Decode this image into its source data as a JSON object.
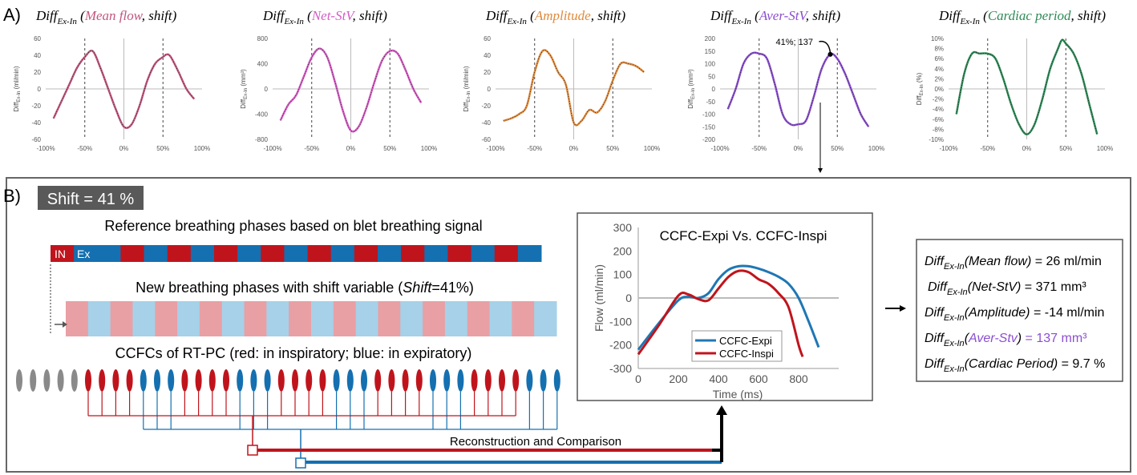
{
  "panel_a": {
    "label": "A)",
    "charts": [
      {
        "prefix": "Diff",
        "sub": "Ex-In",
        "param": "Mean flow",
        "suffix": ", shift)",
        "color": "#c2577f",
        "ylabel_pre": "Diff",
        "ylabel_sub": "Ex-In",
        "ylabel_post": " (ml/min)",
        "yticks": [
          "60",
          "40",
          "20",
          "0",
          "-20",
          "-40",
          "-60"
        ],
        "xticks": [
          "-100%",
          "-50%",
          "0%",
          "50%",
          "100%"
        ],
        "ylim": [
          -60,
          60
        ],
        "x": [
          -90,
          -80,
          -70,
          -60,
          -50,
          -40,
          -30,
          -20,
          -10,
          0,
          10,
          20,
          30,
          40,
          50,
          55,
          60,
          70,
          80,
          90
        ],
        "y": [
          -35,
          -15,
          5,
          25,
          38,
          45,
          25,
          0,
          -25,
          -45,
          -42,
          -20,
          10,
          30,
          38,
          41,
          38,
          20,
          0,
          -12
        ]
      },
      {
        "prefix": "Diff",
        "sub": "Ex-In",
        "param": "Net-StV",
        "suffix": ", shift)",
        "color": "#d55cc4",
        "ylabel_pre": "Diff",
        "ylabel_sub": "Ex-In",
        "ylabel_post": " (mm³)",
        "yticks": [
          "800",
          "400",
          "0",
          "-400",
          "-800"
        ],
        "xticks": [
          "-100%",
          "-50%",
          "0%",
          "50%",
          "100%"
        ],
        "ylim": [
          -800,
          800
        ],
        "x": [
          -90,
          -80,
          -70,
          -60,
          -50,
          -40,
          -30,
          -20,
          -10,
          0,
          10,
          20,
          30,
          40,
          50,
          60,
          70,
          80,
          90
        ],
        "y": [
          -500,
          -250,
          -100,
          200,
          500,
          640,
          500,
          100,
          -350,
          -660,
          -600,
          -300,
          100,
          450,
          600,
          560,
          300,
          0,
          -220
        ]
      },
      {
        "prefix": "Diff",
        "sub": "Ex-In",
        "param": "Amplitude",
        "suffix": ", shift)",
        "color": "#e08a3c",
        "ylabel_pre": "Diff",
        "ylabel_sub": "Ex-In",
        "ylabel_post": " (ml/min)",
        "yticks": [
          "60",
          "40",
          "20",
          "0",
          "-20",
          "-40",
          "-60"
        ],
        "xticks": [
          "-100%",
          "-50%",
          "0%",
          "50%",
          "100%"
        ],
        "ylim": [
          -60,
          60
        ],
        "x": [
          -90,
          -80,
          -70,
          -60,
          -50,
          -40,
          -30,
          -20,
          -10,
          0,
          10,
          20,
          30,
          40,
          50,
          60,
          70,
          80,
          90
        ],
        "y": [
          -38,
          -35,
          -30,
          -20,
          20,
          45,
          40,
          20,
          5,
          -40,
          -38,
          -25,
          -28,
          -15,
          10,
          30,
          30,
          27,
          20
        ]
      },
      {
        "prefix": "Diff",
        "sub": "Ex-In",
        "param": "Aver-StV",
        "suffix": ", shift)",
        "color": "#8b4fcf",
        "ylabel_pre": "Diff",
        "ylabel_sub": "Ex-In",
        "ylabel_post": " (mm³)",
        "yticks": [
          "200",
          "150",
          "100",
          "50",
          "0",
          "-50",
          "-100",
          "-150",
          "-200"
        ],
        "xticks": [
          "-100%",
          "-50%",
          "0%",
          "50%",
          "100%"
        ],
        "ylim": [
          -200,
          200
        ],
        "annotation": "41%; 137",
        "x": [
          -90,
          -80,
          -70,
          -60,
          -50,
          -40,
          -30,
          -20,
          -10,
          0,
          10,
          20,
          30,
          41,
          50,
          60,
          70,
          80,
          90
        ],
        "y": [
          -80,
          0,
          100,
          140,
          140,
          120,
          20,
          -100,
          -140,
          -140,
          -125,
          -30,
          80,
          137,
          120,
          60,
          -20,
          -100,
          -150
        ]
      },
      {
        "prefix": "Diff",
        "sub": "Ex-In",
        "param": "Cardiac period",
        "suffix": ", shift)",
        "color": "#2e8a57",
        "ylabel_pre": "Diff",
        "ylabel_sub": "Ex-In",
        "ylabel_post": " (%)",
        "yticks": [
          "10%",
          "8%",
          "6%",
          "4%",
          "2%",
          "0%",
          "-2%",
          "-4%",
          "-6%",
          "-8%",
          "-10%"
        ],
        "xticks": [
          "-100%",
          "-50%",
          "0%",
          "50%",
          "100%"
        ],
        "ylim": [
          -10,
          10
        ],
        "x": [
          -90,
          -80,
          -70,
          -60,
          -50,
          -40,
          -30,
          -20,
          -10,
          0,
          10,
          20,
          30,
          40,
          45,
          50,
          60,
          70,
          80,
          90
        ],
        "y": [
          -5,
          3,
          7,
          7,
          7,
          6,
          2,
          -3,
          -7,
          -9,
          -7,
          -2,
          4,
          8,
          9.7,
          9,
          7,
          3,
          -3,
          -9
        ]
      }
    ]
  },
  "panel_b": {
    "label": "B)",
    "shift_label": "Shift = 41 %",
    "ref_title": "Reference breathing phases based on blet breathing signal",
    "ref_in": "IN",
    "ref_ex": "Ex",
    "new_title_pre": "New breathing phases with shift variable (",
    "new_title_em": "Shift",
    "new_title_post": "=41%)",
    "ccfc_title": "CCFCs of RT-PC (red: in inspiratory; blue: in expiratory)",
    "recon_label": "Reconstruction and Comparison",
    "colors": {
      "red": "#c0141c",
      "blue": "#1470b0",
      "light_red": "#e8a0a5",
      "light_blue": "#a6d1e8",
      "gray": "#8a8a8a"
    },
    "ref_phases": [
      "R",
      "B",
      "B",
      "R",
      "B",
      "R",
      "B",
      "R",
      "B",
      "R",
      "B",
      "R",
      "B",
      "R",
      "B",
      "R",
      "B",
      "R",
      "B",
      "R",
      "B"
    ],
    "new_phases": [
      "R",
      "B",
      "R",
      "B",
      "R",
      "B",
      "R",
      "B",
      "R",
      "B",
      "R",
      "B",
      "R",
      "B",
      "R",
      "B",
      "R",
      "B",
      "R",
      "B",
      "R",
      "B"
    ],
    "ccfc_sequence": [
      "G",
      "G",
      "G",
      "G",
      "G",
      "R",
      "R",
      "R",
      "R",
      "B",
      "B",
      "B",
      "R",
      "R",
      "R",
      "R",
      "B",
      "B",
      "B",
      "R",
      "R",
      "R",
      "R",
      "B",
      "B",
      "B",
      "R",
      "R",
      "R",
      "R",
      "B",
      "B",
      "B",
      "R",
      "R",
      "R",
      "R",
      "B",
      "B",
      "B"
    ]
  },
  "chart_data": {
    "type": "line",
    "title": "CCFC-Expi Vs. CCFC-Inspi",
    "xlabel": "Time (ms)",
    "ylabel": "Flow (ml/min)",
    "xticks": [
      "0",
      "200",
      "400",
      "600",
      "800"
    ],
    "yticks": [
      "300",
      "200",
      "100",
      "0",
      "-100",
      "-200",
      "-300"
    ],
    "xlim": [
      0,
      1000
    ],
    "ylim": [
      -300,
      300
    ],
    "series": [
      {
        "name": "CCFC-Expi",
        "color": "#1f77b4",
        "x": [
          0,
          100,
          200,
          250,
          300,
          350,
          400,
          450,
          500,
          550,
          600,
          650,
          700,
          750,
          800,
          850,
          900
        ],
        "y": [
          -220,
          -110,
          -10,
          5,
          0,
          20,
          80,
          120,
          135,
          135,
          125,
          110,
          90,
          60,
          0,
          -100,
          -210
        ]
      },
      {
        "name": "CCFC-Inspi",
        "color": "#c0141c",
        "x": [
          0,
          100,
          200,
          250,
          300,
          350,
          400,
          450,
          500,
          550,
          600,
          650,
          700,
          750,
          800,
          820
        ],
        "y": [
          -240,
          -120,
          10,
          15,
          -5,
          -10,
          40,
          90,
          115,
          110,
          80,
          60,
          20,
          -40,
          -200,
          -250
        ]
      }
    ]
  },
  "results": {
    "rows": [
      {
        "pre": "Diff",
        "sub": "Ex-In",
        "param": "(Mean flow)",
        "eq": " = 26 ml/min",
        "purple": false
      },
      {
        "pre": "Diff",
        "sub": "Ex-In",
        "param": "(Net-StV)",
        "eq": " = 371 mm³",
        "purple": false
      },
      {
        "pre": "Diff",
        "sub": "Ex-In",
        "param": "(Amplitude)",
        "eq": " = -14 ml/min",
        "purple": false
      },
      {
        "pre": "Diff",
        "sub": "Ex-In",
        "param_open": "(",
        "param": "Aver-Stv",
        "param_close": ")",
        "eq": " = 137 mm³",
        "purple": true
      },
      {
        "pre": "Diff",
        "sub": "Ex-In",
        "param": "(Cardiac Period)",
        "eq": " = 9.7 %",
        "purple": false
      }
    ],
    "purple": "#8b4fcf"
  }
}
